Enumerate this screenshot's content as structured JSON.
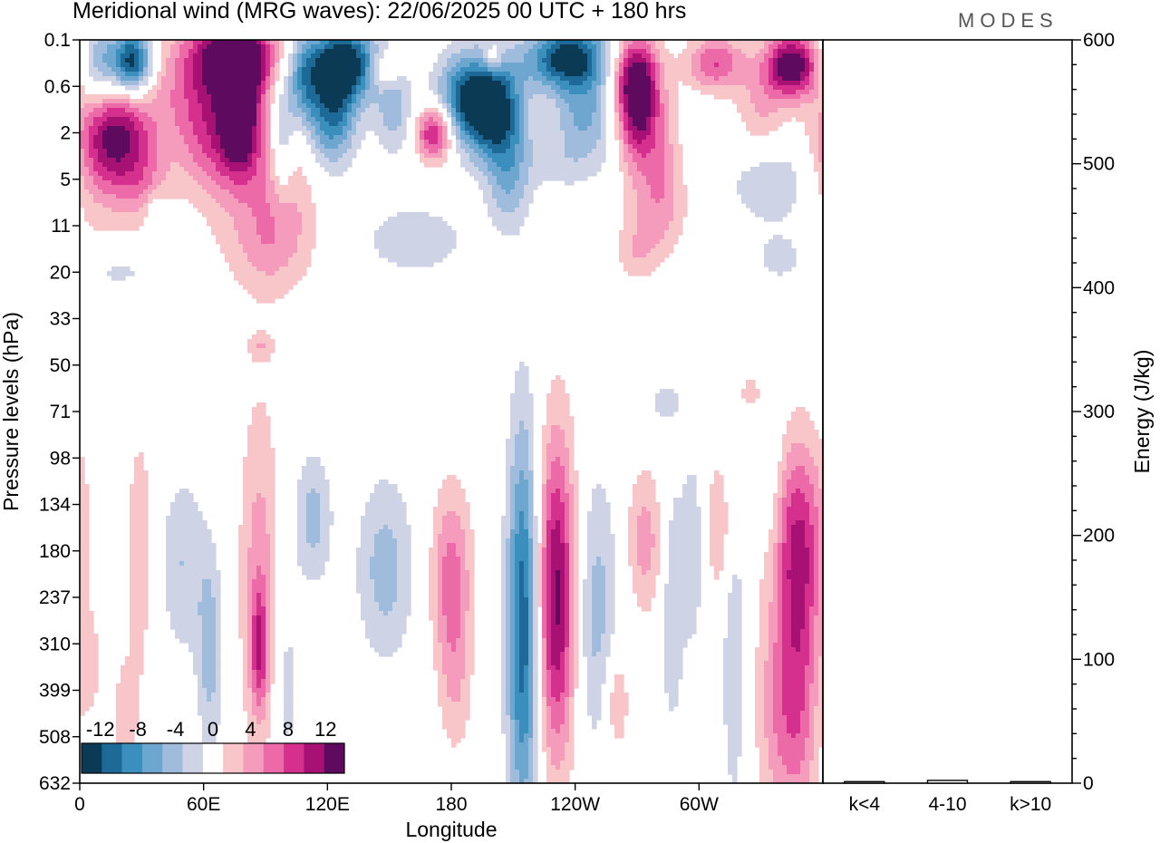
{
  "header": {
    "title": "Meridional wind (MRG waves):  22/06/2025  00 UTC  + 180 hrs",
    "brand": "MODES"
  },
  "chart_data": [
    {
      "type": "heatmap",
      "title": "Meridional wind (MRG waves):  22/06/2025  00 UTC  + 180 hrs",
      "xlabel": "Longitude",
      "ylabel": "Pressure levels (hPa)",
      "x_ticks": [
        "0",
        "60E",
        "120E",
        "180",
        "120W",
        "60W"
      ],
      "x_tick_degrees": [
        0,
        60,
        120,
        180,
        240,
        300
      ],
      "xlim": [
        0,
        360
      ],
      "y_ticks": [
        "0.1",
        "0.6",
        "2",
        "5",
        "11",
        "20",
        "33",
        "50",
        "71",
        "98",
        "134",
        "180",
        "237",
        "310",
        "399",
        "508",
        "632"
      ],
      "y_scale": "level index (top 0.1 hPa to bottom 632 hPa)",
      "colorbar": {
        "labels": [
          "-12",
          "-8",
          "-4",
          "0",
          "4",
          "8",
          "12"
        ],
        "label_values": [
          -12,
          -8,
          -4,
          0,
          4,
          8,
          12
        ],
        "levels": [
          -14,
          -12,
          -10,
          -8,
          -6,
          -4,
          -2,
          2,
          4,
          6,
          8,
          10,
          12,
          14
        ],
        "colors": [
          "#0a3a54",
          "#1d6a98",
          "#3a8fbd",
          "#6da6cf",
          "#9fbcdc",
          "#cfd3e6",
          "#ffffff",
          "#f8c5c9",
          "#f59bbb",
          "#ec6aa8",
          "#d6308f",
          "#a81174",
          "#5e0a5e"
        ],
        "placement": "bottom-left"
      },
      "anomalies": [
        {
          "lon": 7,
          "lev": 1.8,
          "v": 4,
          "rx": 15,
          "ry": 2.4
        },
        {
          "lon": 10,
          "lev": 0.6,
          "v": -10,
          "rx": 12,
          "ry": 1.0
        },
        {
          "lon": 26,
          "lev": 0.5,
          "v": -14,
          "rx": 9,
          "ry": 0.7
        },
        {
          "lon": 18,
          "lev": 2.0,
          "v": 11,
          "rx": 16,
          "ry": 1.2
        },
        {
          "lon": 30,
          "lev": 3.1,
          "v": 4,
          "rx": 13,
          "ry": 1.0
        },
        {
          "lon": 55,
          "lev": 1.2,
          "v": 6,
          "rx": 22,
          "ry": 1.6
        },
        {
          "lon": 76,
          "lev": 0.35,
          "v": 14,
          "rx": 20,
          "ry": 0.8
        },
        {
          "lon": 78,
          "lev": 1.7,
          "v": 13,
          "rx": 10,
          "ry": 1.3
        },
        {
          "lon": 65,
          "lev": 2.2,
          "v": 5,
          "rx": 14,
          "ry": 1.3
        },
        {
          "lon": 96,
          "lev": 3.2,
          "v": 5,
          "rx": 17,
          "ry": 1.8
        },
        {
          "lon": 88,
          "lev": 4.4,
          "v": 3,
          "rx": 24,
          "ry": 1.1
        },
        {
          "lon": 108,
          "lev": 0.8,
          "v": -7,
          "rx": 8,
          "ry": 1.0
        },
        {
          "lon": 98,
          "lev": 2.1,
          "v": -6,
          "rx": 6,
          "ry": 1.4
        },
        {
          "lon": 128,
          "lev": 0.5,
          "v": -14,
          "rx": 16,
          "ry": 0.8
        },
        {
          "lon": 122,
          "lev": 1.6,
          "v": -10,
          "rx": 12,
          "ry": 1.1
        },
        {
          "lon": 148,
          "lev": 0.65,
          "v": 5,
          "rx": 7,
          "ry": 0.4
        },
        {
          "lon": 152,
          "lev": 1.5,
          "v": -5,
          "rx": 9,
          "ry": 1.0
        },
        {
          "lon": 172,
          "lev": 2.0,
          "v": 12,
          "rx": 9,
          "ry": 0.6
        },
        {
          "lon": 191,
          "lev": 1.3,
          "v": -14,
          "rx": 17,
          "ry": 1.0
        },
        {
          "lon": 204,
          "lev": 1.8,
          "v": -8,
          "rx": 12,
          "ry": 1.2
        },
        {
          "lon": 200,
          "lev": 0.4,
          "v": 5,
          "rx": 5,
          "ry": 0.3
        },
        {
          "lon": 208,
          "lev": 3.3,
          "v": -4,
          "rx": 10,
          "ry": 1.0
        },
        {
          "lon": 237,
          "lev": 0.4,
          "v": -14,
          "rx": 20,
          "ry": 0.7
        },
        {
          "lon": 245,
          "lev": 1.6,
          "v": -6,
          "rx": 14,
          "ry": 0.8
        },
        {
          "lon": 270,
          "lev": 1.4,
          "v": 13,
          "rx": 10,
          "ry": 1.3
        },
        {
          "lon": 268,
          "lev": 0.7,
          "v": 6,
          "rx": 12,
          "ry": 0.8
        },
        {
          "lon": 282,
          "lev": 2.6,
          "v": 4,
          "rx": 10,
          "ry": 1.6
        },
        {
          "lon": 278,
          "lev": 3.7,
          "v": 3,
          "rx": 17,
          "ry": 1.0
        },
        {
          "lon": 308,
          "lev": 0.5,
          "v": 8,
          "rx": 14,
          "ry": 0.6
        },
        {
          "lon": 345,
          "lev": 0.55,
          "v": 14,
          "rx": 13,
          "ry": 0.7
        },
        {
          "lon": 330,
          "lev": 1.5,
          "v": 4,
          "rx": 12,
          "ry": 1.0
        },
        {
          "lon": 335,
          "lev": 3.1,
          "v": -4,
          "rx": 20,
          "ry": 0.9
        },
        {
          "lon": 235,
          "lev": 2.6,
          "v": -3,
          "rx": 24,
          "ry": 0.7
        },
        {
          "lon": 162,
          "lev": 4.3,
          "v": -4,
          "rx": 24,
          "ry": 0.7
        },
        {
          "lon": 37,
          "lev": 3.7,
          "v": -3,
          "rx": 6,
          "ry": 0.4
        },
        {
          "lon": 270,
          "lev": 4.6,
          "v": 3,
          "rx": 10,
          "ry": 0.6
        },
        {
          "lon": 340,
          "lev": 4.7,
          "v": -3,
          "rx": 12,
          "ry": 0.5
        },
        {
          "lon": 18,
          "lev": 5.0,
          "v": -3,
          "rx": 14,
          "ry": 0.3
        },
        {
          "lon": 88,
          "lev": 6.6,
          "v": 3,
          "rx": 6,
          "ry": 0.3
        },
        {
          "lon": 283,
          "lev": 7.8,
          "v": -3,
          "rx": 8,
          "ry": 0.4
        },
        {
          "lon": 325,
          "lev": 7.6,
          "v": 3,
          "rx": 6,
          "ry": 0.4
        },
        {
          "lon": 29,
          "lev": 11.0,
          "v": 4,
          "rx": 6,
          "ry": 2.6
        },
        {
          "lon": 50,
          "lev": 11.3,
          "v": -4,
          "rx": 11,
          "ry": 2.0
        },
        {
          "lon": 87,
          "lev": 11.6,
          "v": 5,
          "rx": 10,
          "ry": 4.0
        },
        {
          "lon": 87,
          "lev": 13.1,
          "v": 7,
          "rx": 4,
          "ry": 1.3
        },
        {
          "lon": 100,
          "lev": 13.8,
          "v": -3,
          "rx": 6,
          "ry": 2.5
        },
        {
          "lon": 63,
          "lev": 13.2,
          "v": -5,
          "rx": 6,
          "ry": 2.2
        },
        {
          "lon": 113,
          "lev": 10.3,
          "v": -5,
          "rx": 9,
          "ry": 1.4
        },
        {
          "lon": 148,
          "lev": 11.4,
          "v": -5,
          "rx": 14,
          "ry": 2.0
        },
        {
          "lon": 180,
          "lev": 11.6,
          "v": 7,
          "rx": 10,
          "ry": 2.0
        },
        {
          "lon": 182,
          "lev": 14.0,
          "v": 3,
          "rx": 8,
          "ry": 1.6
        },
        {
          "lon": 215,
          "lev": 12.6,
          "v": -12,
          "rx": 8,
          "ry": 4.3
        },
        {
          "lon": 231,
          "lev": 12.0,
          "v": 13,
          "rx": 10,
          "ry": 3.5
        },
        {
          "lon": 250,
          "lev": 12.3,
          "v": -5,
          "rx": 12,
          "ry": 3.0
        },
        {
          "lon": 274,
          "lev": 10.8,
          "v": 5,
          "rx": 10,
          "ry": 1.6
        },
        {
          "lon": 287,
          "lev": 12.0,
          "v": -4,
          "rx": 6,
          "ry": 3.0
        },
        {
          "lon": 297,
          "lev": 11.0,
          "v": -4,
          "rx": 5,
          "ry": 2.0
        },
        {
          "lon": 347,
          "lev": 10.7,
          "v": 8,
          "rx": 15,
          "ry": 2.2
        },
        {
          "lon": 340,
          "lev": 14.4,
          "v": 6,
          "rx": 12,
          "ry": 2.5
        },
        {
          "lon": 350,
          "lev": 13.5,
          "v": 5,
          "rx": 9,
          "ry": 3.5
        },
        {
          "lon": 22,
          "lev": 14.5,
          "v": 3,
          "rx": 7,
          "ry": 1.4
        },
        {
          "lon": 5,
          "lev": 13.5,
          "v": 3,
          "rx": 5,
          "ry": 1.0
        },
        {
          "lon": 260,
          "lev": 14.2,
          "v": 5,
          "rx": 6,
          "ry": 1.2
        },
        {
          "lon": 317,
          "lev": 13.2,
          "v": -4,
          "rx": 6,
          "ry": 3.5
        },
        {
          "lon": 335,
          "lev": 9.6,
          "v": -3,
          "rx": 6,
          "ry": 2.5
        },
        {
          "lon": 310,
          "lev": 10.5,
          "v": 4,
          "rx": 7,
          "ry": 1.6
        }
      ]
    },
    {
      "type": "bar",
      "categories": [
        "k<4",
        "4-10",
        "k>10"
      ],
      "values": [
        0.5,
        1.5,
        0.5
      ],
      "ylabel": "Energy (J/kg)",
      "ylim": [
        0,
        600
      ],
      "y_ticks": [
        0,
        100,
        200,
        300,
        400,
        500,
        600
      ]
    }
  ]
}
